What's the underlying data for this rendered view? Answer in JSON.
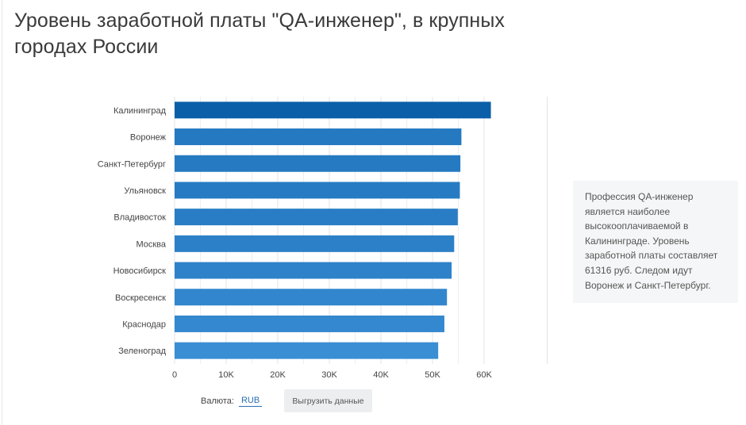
{
  "title": "Уровень заработной платы \"QA-инженер\", в крупных городах России",
  "colors": {
    "bar_dark": "#0b5fa8",
    "bar_mid": "#1a72bb",
    "bar_light": "#3a8ed4",
    "grid": "#e3e3e3",
    "axis_text": "#444444"
  },
  "chart_data": {
    "type": "bar",
    "orientation": "horizontal",
    "title": "Уровень заработной платы \"QA-инженер\", в крупных городах России",
    "categories": [
      "Калининград",
      "Воронеж",
      "Санкт-Петербург",
      "Ульяновск",
      "Владивосток",
      "Москва",
      "Новосибирск",
      "Воскресенск",
      "Краснодар",
      "Зеленоград"
    ],
    "values": [
      61316,
      55600,
      55400,
      55300,
      54900,
      54200,
      53700,
      52800,
      52300,
      51100
    ],
    "xlim": [
      0,
      65000
    ],
    "xticks": [
      0,
      10000,
      20000,
      30000,
      40000,
      50000,
      60000
    ],
    "xtick_labels": [
      "0",
      "10K",
      "20K",
      "30K",
      "40K",
      "50K",
      "60K"
    ],
    "xlabel": "",
    "ylabel": "",
    "grid": true,
    "legend": "none"
  },
  "info": {
    "text": "Профессия QA-инженер является наиболее высокооплачиваемой в Калининграде. Уровень заработной платы составляет 61316 руб. Следом идут Воронеж и Санкт-Петербург."
  },
  "controls": {
    "currency_label": "Валюта:",
    "currency_value": "RUB",
    "export_label": "Выгрузить данные"
  }
}
